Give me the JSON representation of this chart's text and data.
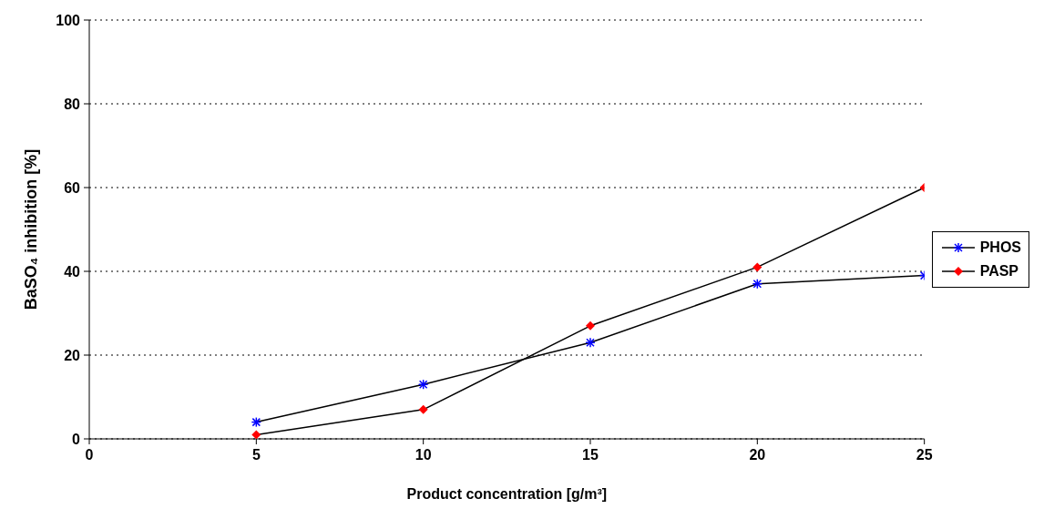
{
  "chart_data": {
    "type": "line",
    "xlabel": "Product concentration [g/m³]",
    "ylabel": "BaSO₄ inhibition [%]",
    "x": [
      5,
      10,
      15,
      20,
      25
    ],
    "series": [
      {
        "name": "PHOS",
        "color": "#0000ff",
        "marker": "cross",
        "values": [
          4,
          13,
          23,
          37,
          39
        ]
      },
      {
        "name": "PASP",
        "color": "#ff0000",
        "marker": "diamond",
        "values": [
          1,
          7,
          27,
          41,
          60
        ]
      }
    ],
    "xlim": [
      0,
      25
    ],
    "xticks": [
      0,
      5,
      10,
      15,
      20,
      25
    ],
    "ylim": [
      0,
      100
    ],
    "yticks": [
      0,
      20,
      40,
      60,
      80,
      100
    ],
    "grid": "y",
    "legend": "right",
    "line_style": "solid"
  }
}
